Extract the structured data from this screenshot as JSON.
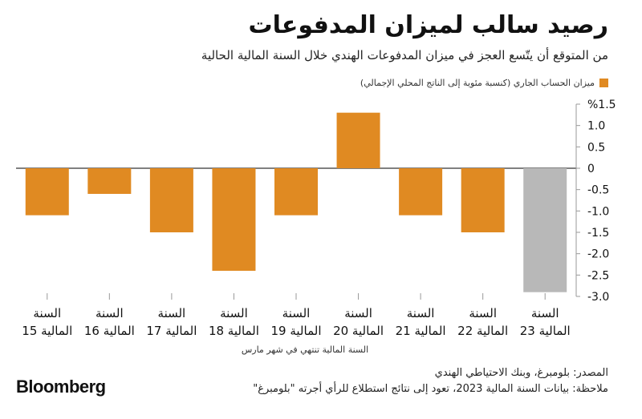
{
  "header": {
    "title": "رصيد سالب لميزان المدفوعات",
    "subtitle": "من المتوقع أن يتّسع العجز في ميزان المدفوعات الهندي خلال السنة المالية الحالية"
  },
  "legend": {
    "label": "ميزان الحساب الجاري (كنسبة مئوية إلى الناتج المحلي الإجمالي)"
  },
  "footer": {
    "x_note": "السنة المالية تنتهي في شهر مارس",
    "source": "المصدر: بلومبرغ، وبنك الاحتياطي الهندي",
    "note": "ملاحظة: بيانات السنة المالية 2023، تعود إلى نتائج استطلاع للرأي أجرته \"بلومبرغ\"",
    "logo": "Bloomberg"
  },
  "chart_data": {
    "type": "bar",
    "categories": [
      [
        "السنة",
        "المالية 15"
      ],
      [
        "السنة",
        "المالية 16"
      ],
      [
        "السنة",
        "المالية 17"
      ],
      [
        "السنة",
        "المالية 18"
      ],
      [
        "السنة",
        "المالية 19"
      ],
      [
        "السنة",
        "المالية 20"
      ],
      [
        "السنة",
        "المالية 21"
      ],
      [
        "السنة",
        "المالية 22"
      ],
      [
        "السنة",
        "المالية 23"
      ]
    ],
    "values": [
      -1.1,
      -0.6,
      -1.5,
      -2.4,
      -1.1,
      1.3,
      -1.1,
      -1.5,
      -2.9
    ],
    "bar_colors": [
      "#e08a22",
      "#e08a22",
      "#e08a22",
      "#e08a22",
      "#e08a22",
      "#e08a22",
      "#e08a22",
      "#e08a22",
      "#b8b8b8"
    ],
    "ylim": [
      -3.0,
      1.5
    ],
    "yticks": [
      1.5,
      1.0,
      0.5,
      0,
      -0.5,
      -1.0,
      -1.5,
      -2.0,
      -2.5,
      -3.0
    ],
    "ytick_labels": [
      "%1.5",
      "1.0",
      "0.5",
      "0",
      "-0.5",
      "-1.0",
      "-1.5",
      "-2.0",
      "-2.5",
      "-3.0"
    ],
    "grid": false,
    "legend_position": "top-right",
    "colors": {
      "accent": "#e08a22",
      "estimate": "#b8b8b8"
    }
  }
}
